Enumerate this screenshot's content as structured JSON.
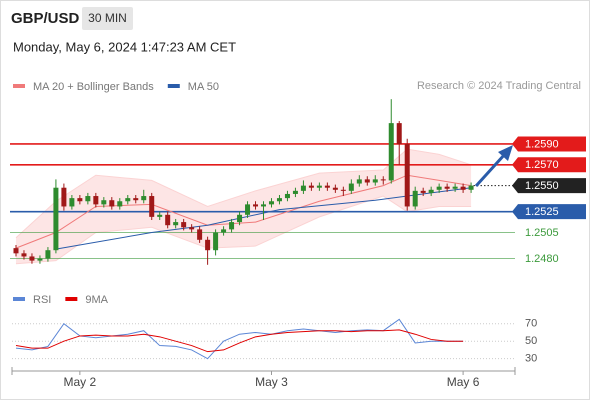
{
  "header": {
    "symbol": "GBP/USD",
    "timeframe": "30 MIN",
    "datetime": "Monday, May 6, 2024 1:47:23 AM CET"
  },
  "chart_data": [
    {
      "type": "candlestick",
      "source": "Research © 2024 Trading Central",
      "up_color": "#2e8b2e",
      "down_color": "#a01818",
      "xlim": [
        -0.5,
        62.5
      ],
      "ylim": [
        1.2469,
        1.2637
      ],
      "open": [
        1.249,
        1.2485,
        1.2482,
        1.2478,
        1.248,
        1.2488,
        1.2548,
        1.253,
        1.2538,
        1.2535,
        1.254,
        1.2532,
        1.2536,
        1.253,
        1.2535,
        1.2538,
        1.2536,
        1.254,
        1.252,
        1.2522,
        1.2512,
        1.2515,
        1.251,
        1.2508,
        1.2498,
        1.2488,
        1.2505,
        1.2508,
        1.2515,
        1.2522,
        1.2532,
        1.253,
        1.2532,
        1.2535,
        1.2538,
        1.2542,
        1.2545,
        1.255,
        1.2548,
        1.255,
        1.2548,
        1.2546,
        1.2545,
        1.2552,
        1.2556,
        1.2553,
        1.2556,
        1.2555,
        1.261,
        1.259,
        1.253,
        1.2545,
        1.2543,
        1.2546,
        1.2549,
        1.2547,
        1.2549,
        1.2546
      ],
      "high": [
        1.2493,
        1.2488,
        1.2485,
        1.2483,
        1.2491,
        1.2556,
        1.2552,
        1.2541,
        1.2541,
        1.2543,
        1.2543,
        1.2539,
        1.2539,
        1.2538,
        1.2541,
        1.2541,
        1.2546,
        1.2543,
        1.2525,
        1.2525,
        1.2518,
        1.2518,
        1.2513,
        1.2511,
        1.2501,
        1.2508,
        1.2511,
        1.2518,
        1.2525,
        1.2535,
        1.2535,
        1.2535,
        1.2538,
        1.2541,
        1.2545,
        1.2548,
        1.2555,
        1.2553,
        1.2553,
        1.2553,
        1.2551,
        1.2549,
        1.2556,
        1.256,
        1.2559,
        1.256,
        1.2559,
        1.2633,
        1.2612,
        1.2595,
        1.2549,
        1.2548,
        1.2549,
        1.2552,
        1.2552,
        1.2552,
        1.2552,
        1.2553
      ],
      "low": [
        1.2482,
        1.2479,
        1.2475,
        1.2475,
        1.2477,
        1.2485,
        1.2526,
        1.2527,
        1.2532,
        1.2532,
        1.2529,
        1.2529,
        1.2527,
        1.2527,
        1.2532,
        1.2533,
        1.2533,
        1.2517,
        1.2517,
        1.2509,
        1.2509,
        1.2507,
        1.2505,
        1.2495,
        1.2474,
        1.2483,
        1.2502,
        1.2505,
        1.2512,
        1.2519,
        1.2527,
        1.2517,
        1.2529,
        1.2532,
        1.2535,
        1.2539,
        1.2542,
        1.2545,
        1.2545,
        1.2545,
        1.2543,
        1.254,
        1.2542,
        1.2549,
        1.255,
        1.255,
        1.2551,
        1.2552,
        1.257,
        1.2526,
        1.2527,
        1.254,
        1.254,
        1.2543,
        1.2544,
        1.2544,
        1.2543,
        1.2543
      ],
      "close": [
        1.2485,
        1.2482,
        1.2478,
        1.248,
        1.2488,
        1.2548,
        1.253,
        1.2538,
        1.2535,
        1.254,
        1.2532,
        1.2536,
        1.253,
        1.2535,
        1.2538,
        1.2536,
        1.254,
        1.252,
        1.2522,
        1.2512,
        1.2515,
        1.251,
        1.2508,
        1.2498,
        1.2488,
        1.2505,
        1.2508,
        1.2515,
        1.2522,
        1.2532,
        1.253,
        1.2532,
        1.2535,
        1.2538,
        1.2542,
        1.2545,
        1.255,
        1.2548,
        1.255,
        1.2548,
        1.2546,
        1.2545,
        1.2552,
        1.2556,
        1.2553,
        1.2556,
        1.2555,
        1.261,
        1.259,
        1.253,
        1.2545,
        1.2543,
        1.2546,
        1.2549,
        1.2547,
        1.2549,
        1.2546,
        1.255
      ],
      "overlays": [
        {
          "name": "MA 20 + Bollinger Bands",
          "color": "#f07a7a",
          "band_color": "#fbd3d3",
          "x": [
            0,
            5,
            10,
            17,
            24,
            30,
            38,
            46,
            49,
            53,
            57
          ],
          "values": [
            1.249,
            1.2505,
            1.253,
            1.2532,
            1.2512,
            1.2515,
            1.2535,
            1.255,
            1.256,
            1.2555,
            1.255
          ],
          "upper": [
            1.25,
            1.2535,
            1.256,
            1.2555,
            1.253,
            1.2545,
            1.2562,
            1.2565,
            1.2585,
            1.258,
            1.257
          ],
          "lower": [
            1.2475,
            1.2478,
            1.2505,
            1.251,
            1.249,
            1.2492,
            1.252,
            1.254,
            1.2525,
            1.253,
            1.253
          ]
        },
        {
          "name": "MA 50",
          "color": "#2a5caa",
          "x": [
            5,
            17,
            24,
            33,
            45,
            52,
            57
          ],
          "values": [
            1.2489,
            1.2505,
            1.2512,
            1.2527,
            1.2536,
            1.2543,
            1.2548
          ]
        }
      ],
      "levels": [
        {
          "value": 1.259,
          "label": "1.2590",
          "color": "#e31b1b",
          "style": "box",
          "line": "solid"
        },
        {
          "value": 1.257,
          "label": "1.2570",
          "color": "#e31b1b",
          "style": "box",
          "line": "solid"
        },
        {
          "value": 1.255,
          "label": "1.2550",
          "color": "#222222",
          "style": "box",
          "line": "dotted"
        },
        {
          "value": 1.2525,
          "label": "1.2525",
          "color": "#2a5caa",
          "style": "box",
          "line": "solid"
        },
        {
          "value": 1.2505,
          "label": "1.2505",
          "color": "#3c9a3c",
          "style": "text",
          "line": "thin"
        },
        {
          "value": 1.248,
          "label": "1.2480",
          "color": "#3c9a3c",
          "style": "text",
          "line": "thin"
        }
      ]
    },
    {
      "type": "line",
      "xlim": [
        -0.5,
        62.5
      ],
      "ylim": [
        17,
        80
      ],
      "yticks": [
        30,
        50,
        70
      ],
      "grid": true,
      "xticks": [
        {
          "value": 8,
          "label": "May 2"
        },
        {
          "value": 32,
          "label": "May 3"
        },
        {
          "value": 56,
          "label": "May 6"
        }
      ],
      "series": [
        {
          "name": "RSI",
          "color": "#5b86d6",
          "x": [
            0,
            2,
            4,
            6,
            8,
            10,
            12,
            14,
            16,
            18,
            20,
            22,
            24,
            26,
            28,
            30,
            32,
            34,
            36,
            38,
            40,
            42,
            44,
            46,
            48,
            50,
            52,
            54,
            56
          ],
          "values": [
            42,
            40,
            44,
            70,
            56,
            54,
            56,
            58,
            62,
            45,
            44,
            40,
            30,
            50,
            58,
            60,
            58,
            62,
            64,
            62,
            60,
            62,
            63,
            62,
            75,
            48,
            50,
            50,
            50
          ]
        },
        {
          "name": "9MA",
          "color": "#e00000",
          "x": [
            0,
            2,
            4,
            6,
            8,
            10,
            12,
            14,
            16,
            18,
            20,
            22,
            24,
            26,
            28,
            30,
            32,
            34,
            36,
            38,
            40,
            42,
            44,
            46,
            48,
            50,
            52,
            54,
            56
          ],
          "values": [
            45,
            42,
            42,
            50,
            56,
            57,
            56,
            56,
            58,
            55,
            50,
            45,
            38,
            40,
            48,
            55,
            58,
            60,
            61,
            62,
            62,
            61,
            62,
            62,
            63,
            58,
            52,
            50,
            50
          ]
        }
      ]
    }
  ]
}
